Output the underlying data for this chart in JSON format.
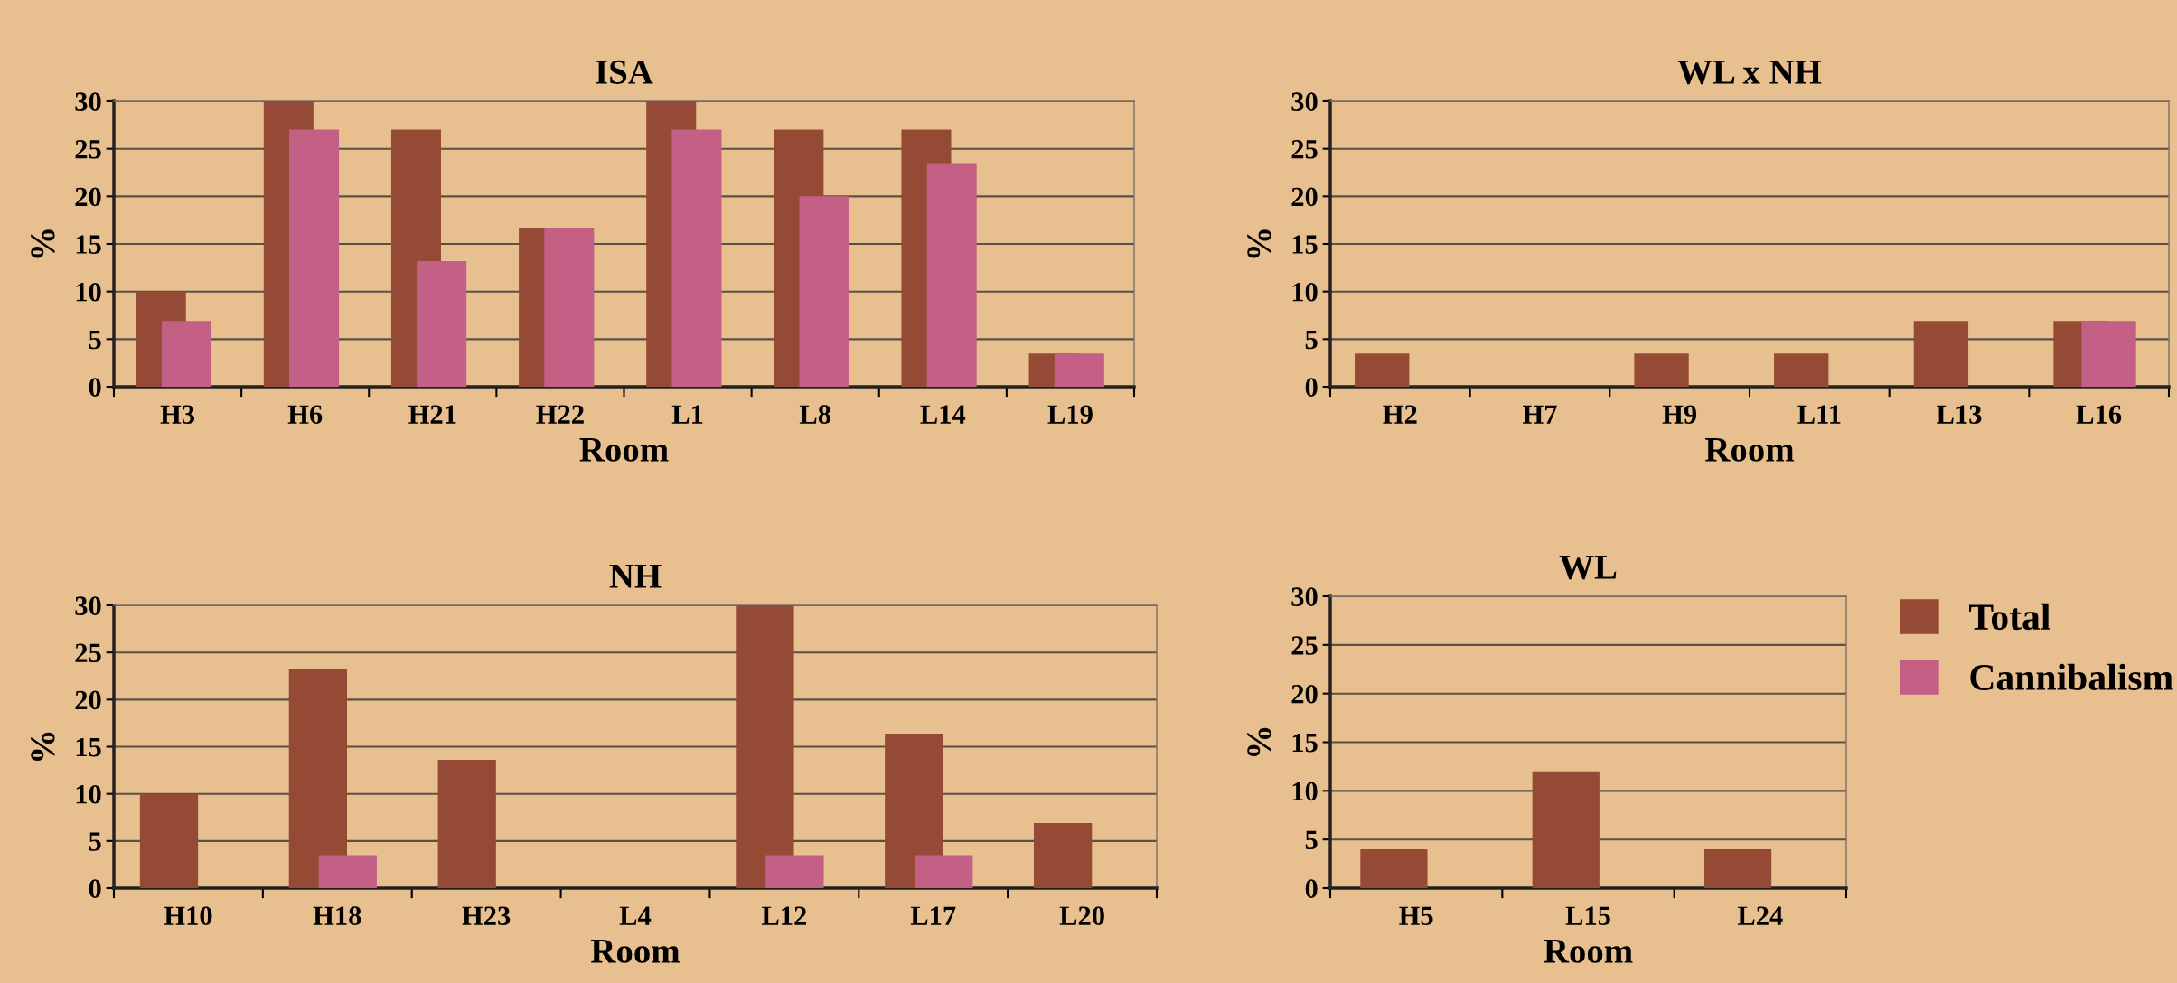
{
  "chart_data": [
    {
      "type": "bar",
      "title": "ISA",
      "xlabel": "Room",
      "ylabel": "%",
      "categories": [
        "H3",
        "H6",
        "H21",
        "H22",
        "L1",
        "L8",
        "L14",
        "L19"
      ],
      "series": [
        {
          "color": "#954a36",
          "values": [
            10,
            30,
            27,
            16.7,
            30,
            27,
            27,
            3.5
          ]
        },
        {
          "color": "#c45f85",
          "values": [
            6.9,
            27,
            13.2,
            16.7,
            27,
            20,
            23.5,
            3.5
          ]
        }
      ],
      "ylim": [
        0,
        30
      ],
      "yticks": [
        0,
        5,
        10,
        15,
        20,
        25,
        30
      ],
      "grid": "y",
      "legend": false
    },
    {
      "type": "bar",
      "title": "WL x NH",
      "xlabel": "Room",
      "ylabel": "%",
      "categories": [
        "H2",
        "H7",
        "H9",
        "L11",
        "L13",
        "L16"
      ],
      "series": [
        {
          "color": "#954a36",
          "values": [
            3.5,
            0,
            3.5,
            3.5,
            6.9,
            6.9
          ]
        },
        {
          "color": "#c45f85",
          "values": [
            0,
            0,
            0,
            0,
            0,
            6.9
          ]
        }
      ],
      "ylim": [
        0,
        30
      ],
      "yticks": [
        0,
        5,
        10,
        15,
        20,
        25,
        30
      ],
      "grid": "y",
      "legend": false
    },
    {
      "type": "bar",
      "title": "NH",
      "xlabel": "Room",
      "ylabel": "%",
      "categories": [
        "H10",
        "H18",
        "H23",
        "L4",
        "L12",
        "L17",
        "L20"
      ],
      "series": [
        {
          "color": "#954a36",
          "values": [
            10,
            23.3,
            13.6,
            0,
            30,
            16.4,
            6.9
          ]
        },
        {
          "color": "#c45f85",
          "values": [
            0,
            3.5,
            0,
            0,
            3.5,
            3.5,
            0
          ]
        }
      ],
      "ylim": [
        0,
        30
      ],
      "yticks": [
        0,
        5,
        10,
        15,
        20,
        25,
        30
      ],
      "grid": "y",
      "legend": false
    },
    {
      "type": "bar",
      "title": "WL",
      "xlabel": "Room",
      "ylabel": "%",
      "categories": [
        "H5",
        "L15",
        "L24"
      ],
      "series": [
        {
          "name": "Total",
          "color": "#954a36",
          "values": [
            4,
            12,
            4
          ]
        },
        {
          "name": "Cannibalism",
          "color": "#c45f85",
          "values": [
            0,
            0,
            0
          ]
        }
      ],
      "ylim": [
        0,
        30
      ],
      "yticks": [
        0,
        5,
        10,
        15,
        20,
        25,
        30
      ],
      "grid": "y",
      "legend": "right"
    }
  ]
}
